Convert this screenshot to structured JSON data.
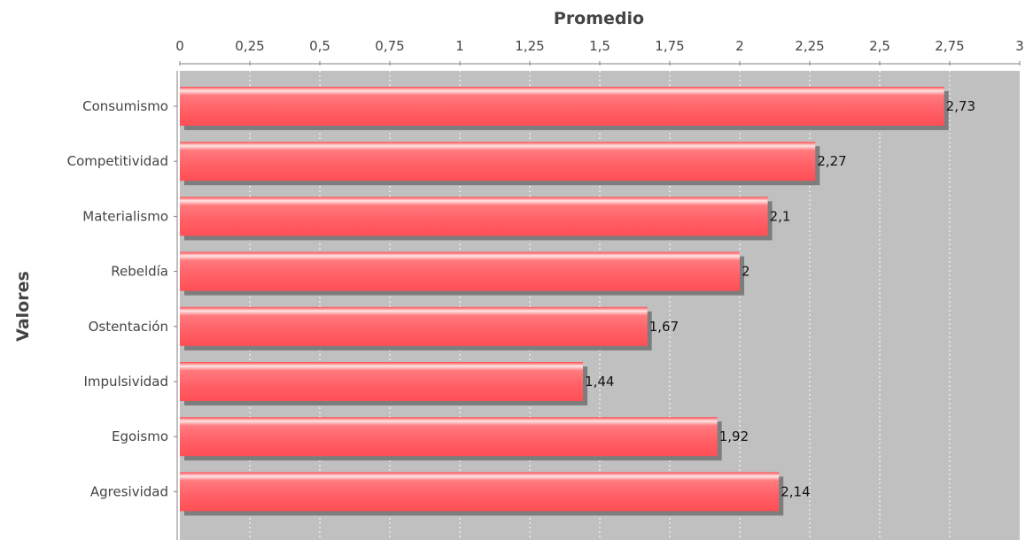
{
  "chart_data": {
    "type": "bar",
    "orientation": "horizontal",
    "title": "",
    "xlabel": "Promedio",
    "ylabel": "Valores",
    "categories": [
      "Consumismo",
      "Competitividad",
      "Materialismo",
      "Rebeldía",
      "Ostentación",
      "Impulsividad",
      "Egoismo",
      "Agresividad"
    ],
    "values": [
      2.73,
      2.27,
      2.1,
      2,
      1.67,
      1.44,
      1.92,
      2.14
    ],
    "value_labels": [
      "2,73",
      "2,27",
      "2,1",
      "2",
      "1,67",
      "1,44",
      "1,92",
      "2,14"
    ],
    "xlim": [
      0,
      3
    ],
    "x_ticks": [
      0,
      0.25,
      0.5,
      0.75,
      1,
      1.25,
      1.5,
      1.75,
      2,
      2.25,
      2.5,
      2.75,
      3
    ],
    "x_tick_labels": [
      "0",
      "0,25",
      "0,5",
      "0,75",
      "1",
      "1,25",
      "1,5",
      "1,75",
      "2",
      "2,25",
      "2,5",
      "2,75",
      "3"
    ],
    "x_axis_position": "top",
    "grid": true,
    "colors": {
      "bar": "#ff5f63",
      "bar_highlight": "#ffe0e0",
      "bar_shadow": "#7d7d7d",
      "plot_background": "#c0c0c0",
      "gridline": "#ffffff"
    }
  }
}
